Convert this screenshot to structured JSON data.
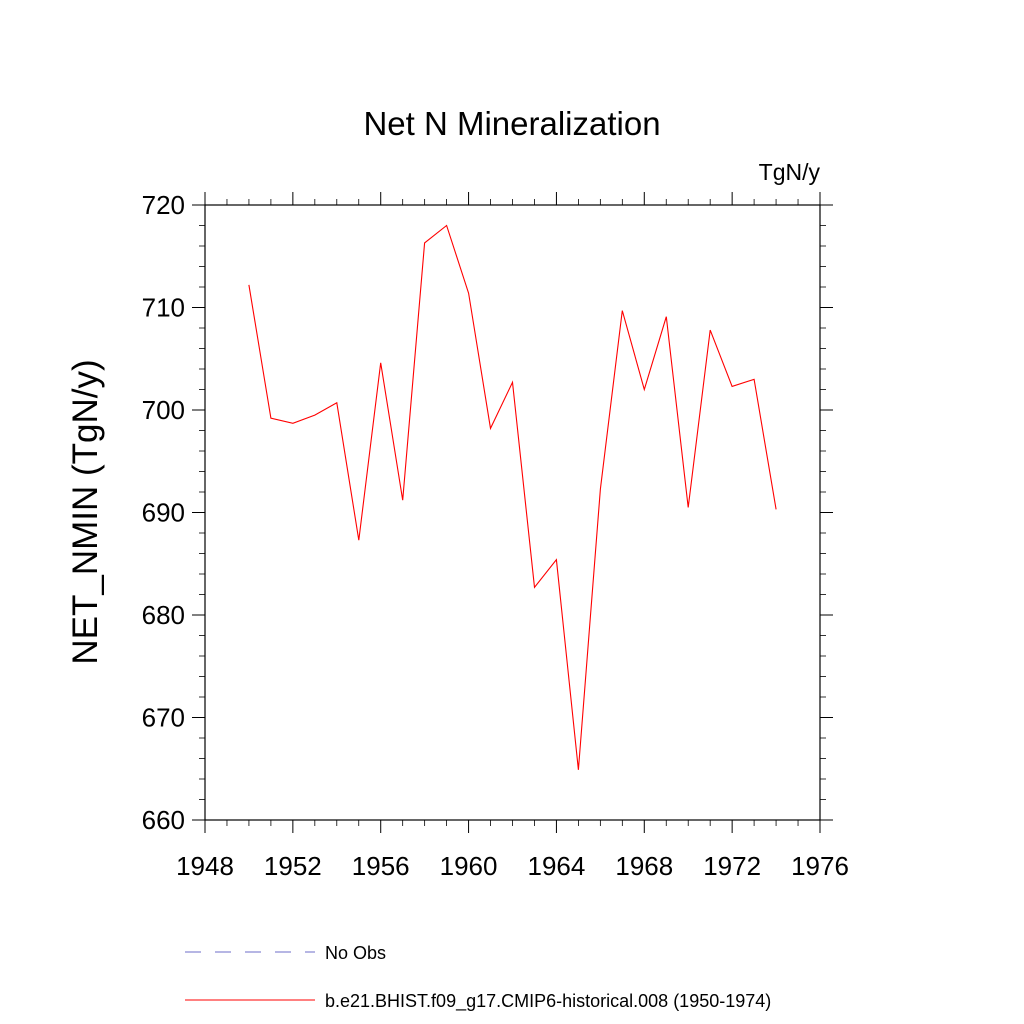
{
  "chart_data": {
    "type": "line",
    "title": "Net N Mineralization",
    "units_label": "TgN/y",
    "ylabel": "NET_NMIN  (TgN/y)",
    "xlabel": "",
    "xlim": [
      1948,
      1976
    ],
    "ylim": [
      660,
      720
    ],
    "x_ticks": [
      1948,
      1952,
      1956,
      1960,
      1964,
      1968,
      1972,
      1976
    ],
    "y_ticks": [
      660,
      670,
      680,
      690,
      700,
      710,
      720
    ],
    "grid": false,
    "series": [
      {
        "name": "b.e21.BHIST.f09_g17.CMIP6-historical.008 (1950-1974)",
        "color": "#ff0000",
        "style": "solid",
        "x": [
          1950,
          1951,
          1952,
          1953,
          1954,
          1955,
          1956,
          1957,
          1958,
          1959,
          1960,
          1961,
          1962,
          1963,
          1964,
          1965,
          1966,
          1967,
          1968,
          1969,
          1970,
          1971,
          1972,
          1973,
          1974
        ],
        "y": [
          712.2,
          699.2,
          698.7,
          699.5,
          700.7,
          687.3,
          704.6,
          691.2,
          716.3,
          718.0,
          711.4,
          698.2,
          702.7,
          682.7,
          685.4,
          664.9,
          692.3,
          709.7,
          702.0,
          709.1,
          690.5,
          707.8,
          702.3,
          703.0,
          690.3
        ]
      }
    ],
    "legend": [
      {
        "label": "No Obs",
        "color": "#6e6ec8",
        "style": "dashed"
      },
      {
        "label": "b.e21.BHIST.f09_g17.CMIP6-historical.008 (1950-1974)",
        "color": "#ff0000",
        "style": "solid"
      }
    ]
  }
}
